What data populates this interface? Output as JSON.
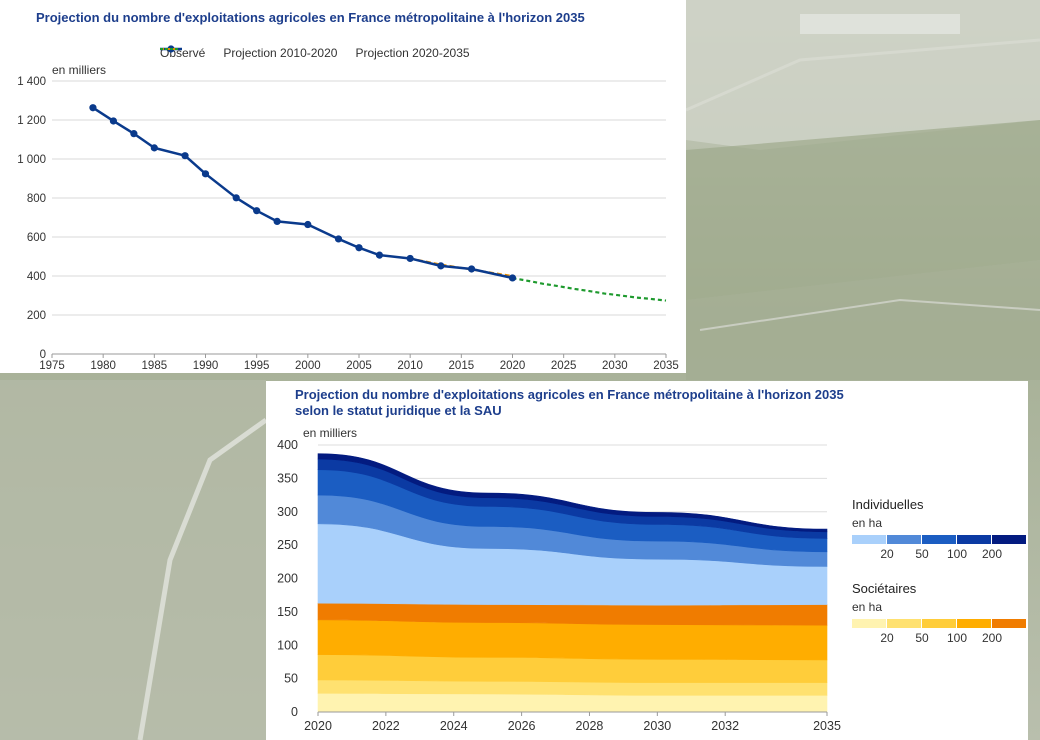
{
  "colors": {
    "observed": "#0a3a8c",
    "proj2010": "#e08a00",
    "proj2020": "#1e9a2e",
    "individuelles": [
      "#a9d0fb",
      "#5189d8",
      "#1b5dc2",
      "#0b3aa3",
      "#031b80"
    ],
    "societaires": [
      "#fff3b0",
      "#ffe170",
      "#ffcd3a",
      "#ffad00",
      "#f07c00"
    ]
  },
  "chart1": {
    "title": "Projection du nombre d'exploitations agricoles en France métropolitaine à l'horizon 2035",
    "unit": "en milliers",
    "legend": {
      "observed": "Observé",
      "proj2010": "Projection 2010-2020",
      "proj2020": "Projection 2020-2035"
    }
  },
  "chart2": {
    "title": "Projection du nombre d'exploitations agricoles en France métropolitaine à l'horizon 2035 selon le statut juridique et la SAU",
    "unit": "en milliers",
    "legend_individuelles": {
      "title": "Individuelles",
      "unit": "en ha",
      "breaks": [
        "20",
        "50",
        "100",
        "200"
      ]
    },
    "legend_societaires": {
      "title": "Sociétaires",
      "unit": "en ha",
      "breaks": [
        "20",
        "50",
        "100",
        "200"
      ]
    }
  },
  "chart_data": [
    {
      "type": "line",
      "title": "Projection du nombre d'exploitations agricoles en France métropolitaine à l'horizon 2035",
      "ylabel": "en milliers",
      "xlim": [
        1975,
        2035
      ],
      "ylim": [
        0,
        1400
      ],
      "x_ticks": [
        1975,
        1980,
        1985,
        1990,
        1995,
        2000,
        2005,
        2010,
        2015,
        2020,
        2025,
        2030,
        2035
      ],
      "y_ticks": [
        0,
        200,
        400,
        600,
        800,
        1000,
        1200,
        1400
      ],
      "y_tick_labels": [
        "0",
        "200",
        "400",
        "600",
        "800",
        "1 000",
        "1 200",
        "1 400"
      ],
      "grid": true,
      "legend_position": "top",
      "series": [
        {
          "name": "Observé",
          "style": "solid-markers",
          "points": [
            [
              1979,
              1263
            ],
            [
              1981,
              1195
            ],
            [
              1983,
              1130
            ],
            [
              1985,
              1057
            ],
            [
              1988,
              1017
            ],
            [
              1990,
              924
            ],
            [
              1993,
              801
            ],
            [
              1995,
              735
            ],
            [
              1997,
              680
            ],
            [
              2000,
              664
            ],
            [
              2003,
              590
            ],
            [
              2005,
              545
            ],
            [
              2007,
              507
            ],
            [
              2010,
              490
            ],
            [
              2013,
              452
            ],
            [
              2016,
              436
            ],
            [
              2020,
              390
            ]
          ]
        },
        {
          "name": "Projection 2010-2020",
          "style": "dashed",
          "points": [
            [
              2010,
              490
            ],
            [
              2013,
              459
            ],
            [
              2016,
              433
            ],
            [
              2020,
              400
            ]
          ]
        },
        {
          "name": "Projection 2020-2035",
          "style": "dashed",
          "points": [
            [
              2020,
              389
            ],
            [
              2023,
              360
            ],
            [
              2026,
              334
            ],
            [
              2029,
              310
            ],
            [
              2032,
              290
            ],
            [
              2035,
              274
            ]
          ]
        }
      ]
    },
    {
      "type": "area",
      "stacked": true,
      "title": "Projection du nombre d'exploitations agricoles en France métropolitaine à l'horizon 2035 selon le statut juridique et la SAU",
      "ylabel": "en milliers",
      "x": [
        2020,
        2025,
        2030,
        2035
      ],
      "x_ticks": [
        2020,
        2022,
        2024,
        2026,
        2028,
        2030,
        2032,
        2035
      ],
      "ylim": [
        0,
        400
      ],
      "y_ticks": [
        0,
        50,
        100,
        150,
        200,
        250,
        300,
        350,
        400
      ],
      "grid": true,
      "legend_position": "right",
      "series": [
        {
          "name": "Sociétaires < 20 ha",
          "values": [
            28,
            27,
            25,
            25
          ]
        },
        {
          "name": "Sociétaires 20-50 ha",
          "values": [
            20,
            19,
            19,
            19
          ]
        },
        {
          "name": "Sociétaires 50-100 ha",
          "values": [
            38,
            36,
            35,
            34
          ]
        },
        {
          "name": "Sociétaires 100-200 ha",
          "values": [
            52,
            52,
            52,
            52
          ]
        },
        {
          "name": "Sociétaires > 200 ha",
          "values": [
            25,
            27,
            29,
            31
          ]
        },
        {
          "name": "Individuelles < 20 ha",
          "values": [
            119,
            84,
            69,
            57
          ]
        },
        {
          "name": "Individuelles 20-50 ha",
          "values": [
            43,
            33,
            27,
            22
          ]
        },
        {
          "name": "Individuelles 50-100 ha",
          "values": [
            38,
            30,
            25,
            20
          ]
        },
        {
          "name": "Individuelles 100-200 ha",
          "values": [
            16,
            13,
            12,
            10
          ]
        },
        {
          "name": "Individuelles > 200 ha",
          "values": [
            8,
            7,
            6,
            4
          ]
        }
      ]
    }
  ]
}
